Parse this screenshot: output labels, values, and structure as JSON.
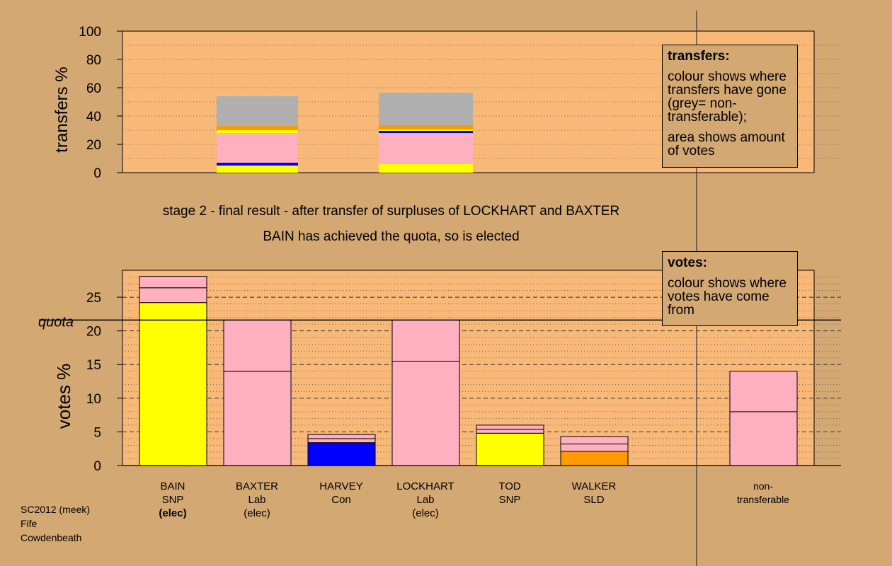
{
  "stage_title": "stage 2 - final result - after transfer of surpluses of LOCKHART and BAXTER",
  "stage_subtitle": "BAIN has achieved the quota, so is elected",
  "quota_label": "quota",
  "transfers_legend": {
    "title": "transfers:",
    "line1": "colour shows where transfers have gone (grey= non-transferable);",
    "line2": "area shows amount of votes"
  },
  "votes_legend": {
    "title": "votes:",
    "line1": "colour shows where votes have come from"
  },
  "candidates": [
    {
      "name": "BAIN",
      "party": "SNP",
      "status": "(elec)",
      "status_bold": true
    },
    {
      "name": "BAXTER",
      "party": "Lab",
      "status": "(elec)",
      "status_bold": false
    },
    {
      "name": "HARVEY",
      "party": "Con",
      "status": "",
      "status_bold": false
    },
    {
      "name": "LOCKHART",
      "party": "Lab",
      "status": "(elec)",
      "status_bold": false
    },
    {
      "name": "TOD",
      "party": "SNP",
      "status": "",
      "status_bold": false
    },
    {
      "name": "WALKER",
      "party": "SLD",
      "status": "",
      "status_bold": false
    }
  ],
  "nontransferable": {
    "line1": "non-",
    "line2": "transferable"
  },
  "source": {
    "line1": "SC2012 (meek)",
    "line2": "Fife",
    "line3": "Cowdenbeath"
  },
  "colors": {
    "background": "#d4a872",
    "plot_bg": "#f8b878",
    "SNP": "#ffff00",
    "Lab": "#ffb0c0",
    "Con": "#0000ff",
    "SLD": "#ff9900",
    "nontransferable": "#b0b0b0"
  },
  "chart_data": [
    {
      "type": "bar",
      "stacked": true,
      "title": "",
      "xlabel": "",
      "ylabel": "transfers %",
      "ylim": [
        0,
        100
      ],
      "yticks": [
        0,
        20,
        40,
        60,
        80,
        100
      ],
      "grid": "dotted every 10",
      "bars": [
        {
          "source": "BAXTER",
          "segments": [
            {
              "to": "SNP",
              "value": 5
            },
            {
              "to": "Con",
              "value": 2
            },
            {
              "to": "Lab",
              "value": 21
            },
            {
              "to": "SNP",
              "value": 2
            },
            {
              "to": "SLD",
              "value": 3
            },
            {
              "to": "nontransferable",
              "value": 21
            }
          ]
        },
        {
          "source": "LOCKHART",
          "segments": [
            {
              "to": "SNP",
              "value": 6
            },
            {
              "to": "Lab",
              "value": 22
            },
            {
              "to": "Con",
              "value": 1.5
            },
            {
              "to": "SNP",
              "value": 1
            },
            {
              "to": "SLD",
              "value": 3
            },
            {
              "to": "nontransferable",
              "value": 23
            }
          ]
        }
      ]
    },
    {
      "type": "bar",
      "stacked": true,
      "title": "",
      "xlabel": "",
      "ylabel": "votes %",
      "ylim": [
        0,
        29
      ],
      "yticks": [
        0,
        5,
        10,
        15,
        20,
        25
      ],
      "grid": "dashed every 5, dotted every 1",
      "quota": 21.6,
      "bars": [
        {
          "candidate": "BAIN",
          "segments": [
            {
              "from": "SNP",
              "value": 24.2
            },
            {
              "from": "Lab",
              "value": 2.2
            },
            {
              "from": "Lab",
              "value": 1.7
            }
          ]
        },
        {
          "candidate": "BAXTER",
          "segments": [
            {
              "from": "Lab",
              "value": 14
            },
            {
              "from": "Lab",
              "value": 7.6
            }
          ]
        },
        {
          "candidate": "HARVEY",
          "segments": [
            {
              "from": "Con",
              "value": 3.4
            },
            {
              "from": "Lab",
              "value": 0.6
            },
            {
              "from": "Lab",
              "value": 0.6
            }
          ]
        },
        {
          "candidate": "LOCKHART",
          "segments": [
            {
              "from": "Lab",
              "value": 15.5
            },
            {
              "from": "Lab",
              "value": 6.1
            }
          ]
        },
        {
          "candidate": "TOD",
          "segments": [
            {
              "from": "SNP",
              "value": 4.8
            },
            {
              "from": "Lab",
              "value": 0.6
            },
            {
              "from": "Lab",
              "value": 0.6
            }
          ]
        },
        {
          "candidate": "WALKER",
          "segments": [
            {
              "from": "SLD",
              "value": 2.1
            },
            {
              "from": "Lab",
              "value": 1.1
            },
            {
              "from": "Lab",
              "value": 1.1
            }
          ]
        },
        {
          "candidate": "non-transferable",
          "segments": [
            {
              "from": "Lab",
              "value": 8
            },
            {
              "from": "Lab",
              "value": 6
            }
          ]
        }
      ]
    }
  ]
}
